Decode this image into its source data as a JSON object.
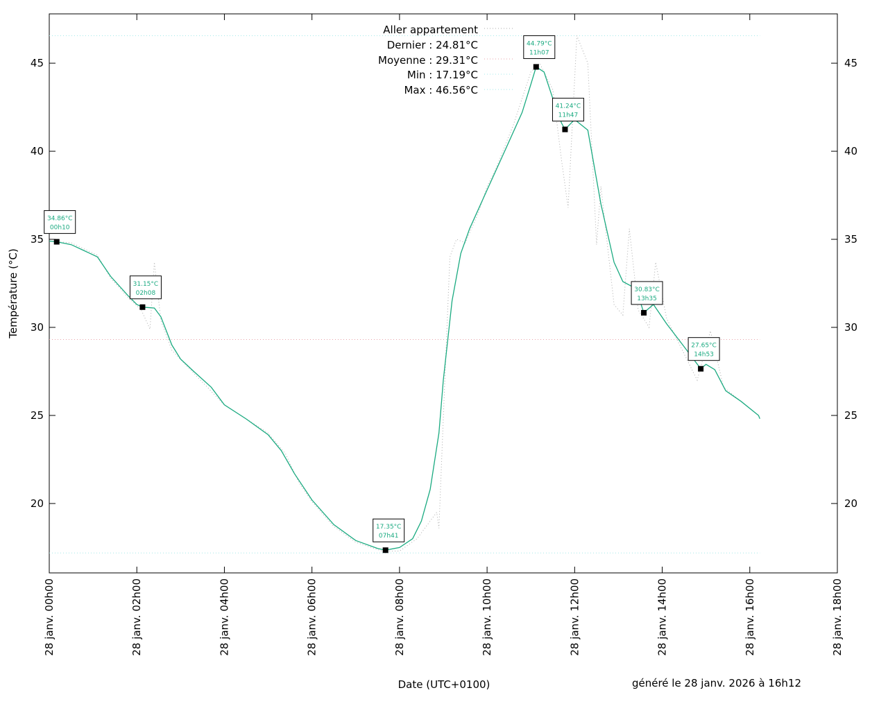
{
  "chart_data": {
    "type": "line",
    "xlabel": "Date (UTC+0100)",
    "ylabel": "Température (°C)",
    "footer": "généré le 28 janv. 2026 à 16h12",
    "xlim_hours": [
      0,
      18
    ],
    "ylim": [
      16.06,
      47.8
    ],
    "x_ticks": [
      {
        "h": 0,
        "label": "28 janv. 00h00"
      },
      {
        "h": 2,
        "label": "28 janv. 02h00"
      },
      {
        "h": 4,
        "label": "28 janv. 04h00"
      },
      {
        "h": 6,
        "label": "28 janv. 06h00"
      },
      {
        "h": 8,
        "label": "28 janv. 08h00"
      },
      {
        "h": 10,
        "label": "28 janv. 10h00"
      },
      {
        "h": 12,
        "label": "28 janv. 12h00"
      },
      {
        "h": 14,
        "label": "28 janv. 14h00"
      },
      {
        "h": 16,
        "label": "28 janv. 16h00"
      },
      {
        "h": 18,
        "label": "28 janv. 18h00"
      }
    ],
    "y_ticks": [
      20,
      25,
      30,
      35,
      40,
      45
    ],
    "legend": {
      "series": "Aller appartement",
      "last": "Dernier : 24.81°C",
      "mean": "Moyenne : 29.31°C",
      "min": "Min : 17.19°C",
      "max": "Max : 46.56°C"
    },
    "stats": {
      "last": 24.81,
      "mean": 29.31,
      "min": 17.19,
      "max": 46.56
    },
    "colors": {
      "smooth": "#1aaa80",
      "raw": "#aaaaaa",
      "mean": "#e8a0a8",
      "minmax": "#a0e8e8",
      "label": "#1aaa80"
    },
    "smoothed_series": [
      [
        0,
        34.9
      ],
      [
        0.17,
        34.86
      ],
      [
        0.5,
        34.7
      ],
      [
        0.8,
        34.35
      ],
      [
        1.1,
        34.0
      ],
      [
        1.4,
        32.9
      ],
      [
        1.8,
        31.8
      ],
      [
        2.0,
        31.3
      ],
      [
        2.13,
        31.15
      ],
      [
        2.4,
        31.1
      ],
      [
        2.55,
        30.6
      ],
      [
        2.8,
        29.0
      ],
      [
        3.0,
        28.2
      ],
      [
        3.3,
        27.5
      ],
      [
        3.7,
        26.6
      ],
      [
        4.0,
        25.6
      ],
      [
        4.5,
        24.8
      ],
      [
        5.0,
        23.9
      ],
      [
        5.3,
        23.0
      ],
      [
        5.6,
        21.7
      ],
      [
        6.0,
        20.2
      ],
      [
        6.5,
        18.8
      ],
      [
        7.0,
        17.9
      ],
      [
        7.5,
        17.45
      ],
      [
        7.68,
        17.35
      ],
      [
        8.0,
        17.5
      ],
      [
        8.3,
        18.0
      ],
      [
        8.5,
        19.0
      ],
      [
        8.7,
        20.8
      ],
      [
        8.9,
        24.0
      ],
      [
        9.0,
        27.0
      ],
      [
        9.2,
        31.5
      ],
      [
        9.4,
        34.2
      ],
      [
        9.6,
        35.6
      ],
      [
        10.0,
        37.8
      ],
      [
        10.4,
        40.0
      ],
      [
        10.8,
        42.2
      ],
      [
        11.0,
        43.8
      ],
      [
        11.12,
        44.79
      ],
      [
        11.3,
        44.5
      ],
      [
        11.5,
        43.0
      ],
      [
        11.7,
        41.6
      ],
      [
        11.78,
        41.24
      ],
      [
        12.0,
        41.8
      ],
      [
        12.3,
        41.2
      ],
      [
        12.6,
        37.0
      ],
      [
        12.9,
        33.7
      ],
      [
        13.1,
        32.6
      ],
      [
        13.4,
        32.2
      ],
      [
        13.58,
        30.83
      ],
      [
        13.8,
        31.3
      ],
      [
        14.1,
        30.2
      ],
      [
        14.5,
        28.9
      ],
      [
        14.88,
        27.65
      ],
      [
        15.0,
        27.9
      ],
      [
        15.2,
        27.6
      ],
      [
        15.45,
        26.4
      ],
      [
        15.8,
        25.8
      ],
      [
        16.2,
        25.0
      ],
      [
        16.23,
        24.81
      ]
    ],
    "raw_series": [
      [
        0,
        34.9
      ],
      [
        0.5,
        34.8
      ],
      [
        1.1,
        34.1
      ],
      [
        1.4,
        32.8
      ],
      [
        1.8,
        31.7
      ],
      [
        2.1,
        31.0
      ],
      [
        2.3,
        29.9
      ],
      [
        2.4,
        33.7
      ],
      [
        2.55,
        30.4
      ],
      [
        2.8,
        28.7
      ],
      [
        3.3,
        27.4
      ],
      [
        4.0,
        25.6
      ],
      [
        5.0,
        24.0
      ],
      [
        5.4,
        22.8
      ],
      [
        5.7,
        21.2
      ],
      [
        6.0,
        20.1
      ],
      [
        6.5,
        18.7
      ],
      [
        7.0,
        17.8
      ],
      [
        7.6,
        17.3
      ],
      [
        8.0,
        17.3
      ],
      [
        8.4,
        18.0
      ],
      [
        8.85,
        19.5
      ],
      [
        8.9,
        18.6
      ],
      [
        9.05,
        28.0
      ],
      [
        9.15,
        34.0
      ],
      [
        9.3,
        35.0
      ],
      [
        9.5,
        34.8
      ],
      [
        9.8,
        36.5
      ],
      [
        10.0,
        38.0
      ],
      [
        10.2,
        39.0
      ],
      [
        10.6,
        41.5
      ],
      [
        11.0,
        44.5
      ],
      [
        11.2,
        45.0
      ],
      [
        11.5,
        43.5
      ],
      [
        11.7,
        39.5
      ],
      [
        11.85,
        36.8
      ],
      [
        12.05,
        46.56
      ],
      [
        12.3,
        45.0
      ],
      [
        12.5,
        34.7
      ],
      [
        12.6,
        38.0
      ],
      [
        12.9,
        31.3
      ],
      [
        13.1,
        30.7
      ],
      [
        13.25,
        35.6
      ],
      [
        13.45,
        31.0
      ],
      [
        13.7,
        30.0
      ],
      [
        13.85,
        33.7
      ],
      [
        14.1,
        30.5
      ],
      [
        14.5,
        28.5
      ],
      [
        14.8,
        27.0
      ],
      [
        15.1,
        29.8
      ],
      [
        15.4,
        26.6
      ],
      [
        16.2,
        25.0
      ],
      [
        16.23,
        24.81
      ]
    ],
    "annotations": [
      {
        "h": 0.17,
        "v": 34.86,
        "value": "34.86°C",
        "time": "00h10"
      },
      {
        "h": 2.13,
        "v": 31.15,
        "value": "31.15°C",
        "time": "02h08"
      },
      {
        "h": 7.68,
        "v": 17.35,
        "value": "17.35°C",
        "time": "07h41"
      },
      {
        "h": 11.12,
        "v": 44.79,
        "value": "44.79°C",
        "time": "11h07"
      },
      {
        "h": 11.78,
        "v": 41.24,
        "value": "41.24°C",
        "time": "11h47"
      },
      {
        "h": 13.58,
        "v": 30.83,
        "value": "30.83°C",
        "time": "13h35"
      },
      {
        "h": 14.88,
        "v": 27.65,
        "value": "27.65°C",
        "time": "14h53"
      }
    ]
  }
}
